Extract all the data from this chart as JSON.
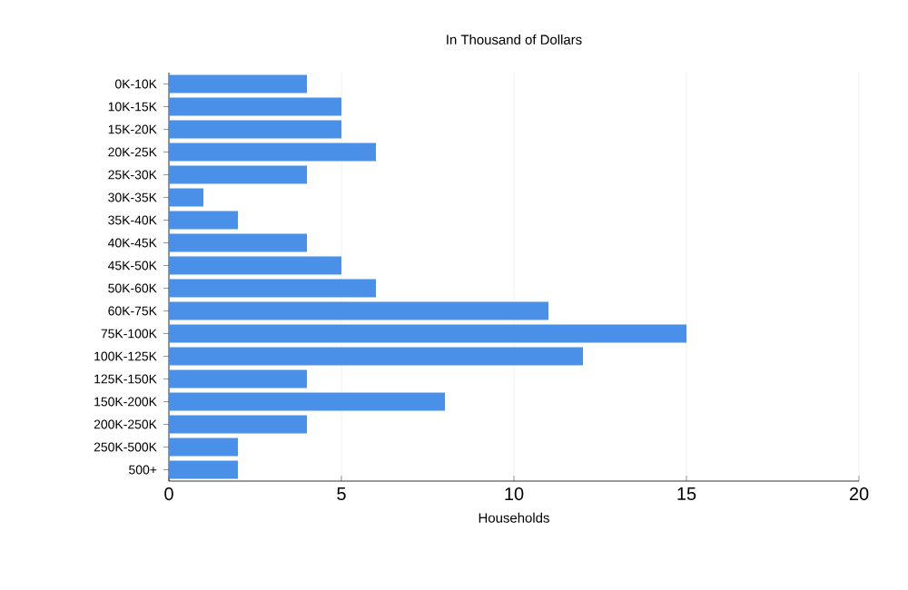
{
  "chart_data": {
    "type": "bar",
    "orientation": "horizontal",
    "title": "In Thousand of Dollars",
    "xlabel": "Households",
    "categories": [
      "0K-10K",
      "10K-15K",
      "15K-20K",
      "20K-25K",
      "25K-30K",
      "30K-35K",
      "35K-40K",
      "40K-45K",
      "45K-50K",
      "50K-60K",
      "60K-75K",
      "75K-100K",
      "100K-125K",
      "125K-150K",
      "150K-200K",
      "200K-250K",
      "250K-500K",
      "500+"
    ],
    "values": [
      4,
      5,
      5,
      6,
      4,
      1,
      2,
      4,
      5,
      6,
      11,
      15,
      12,
      4,
      8,
      4,
      2,
      2
    ],
    "color": "#4a90e8",
    "xlim": [
      0,
      20
    ],
    "xticks": [
      0,
      5,
      10,
      15,
      20
    ],
    "grid": "x"
  }
}
